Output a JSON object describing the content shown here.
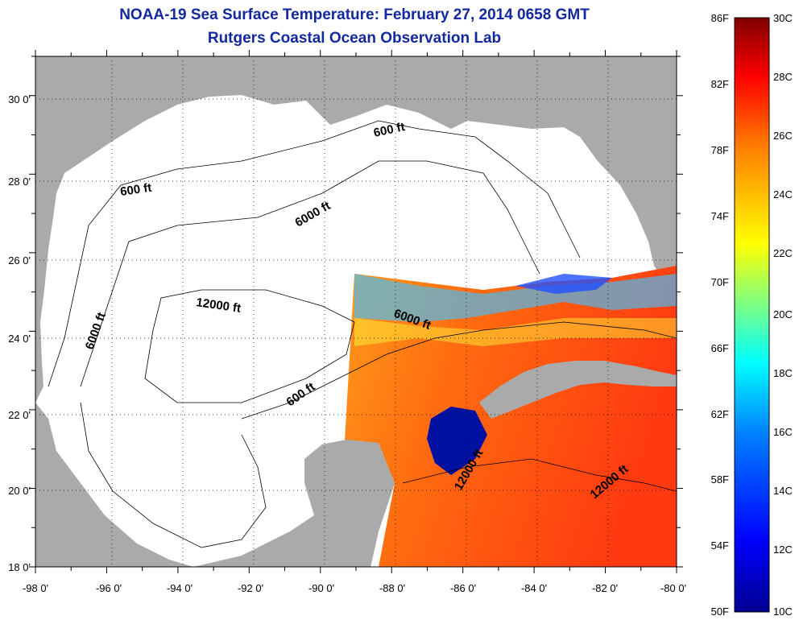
{
  "title": {
    "line1": "NOAA-19 Sea Surface Temperature:  February 27, 2014 0658 GMT",
    "line2": "Rutgers Coastal Ocean Observation Lab"
  },
  "map": {
    "lat_labels": [
      "18 0'",
      "20 0'",
      "22 0'",
      "24 0'",
      "26 0'",
      "28 0'",
      "30 0'"
    ],
    "lon_labels": [
      "-98 0'",
      "-96 0'",
      "-94 0'",
      "-92 0'",
      "-90 0'",
      "-88 0'",
      "-86 0'",
      "-84 0'",
      "-82 0'",
      "-80 0'"
    ],
    "contour_labels": [
      "600 ft",
      "600 ft",
      "600 ft",
      "6000 ft",
      "6000 ft",
      "6000 ft",
      "12000 ft",
      "12000 ft",
      "12000 ft"
    ],
    "colors": {
      "land": "#aaaaaa",
      "no_data": "#ffffff",
      "grid": "#000000"
    }
  },
  "colorbar": {
    "f_labels": [
      "86F",
      "82F",
      "78F",
      "74F",
      "70F",
      "66F",
      "62F",
      "58F",
      "54F",
      "50F"
    ],
    "c_labels": [
      "30C",
      "28C",
      "26C",
      "24C",
      "22C",
      "20C",
      "18C",
      "16C",
      "14C",
      "12C",
      "10C"
    ],
    "colors": [
      "#00008f",
      "#0000ff",
      "#0080ff",
      "#00ffff",
      "#80ff80",
      "#ffff00",
      "#ff8000",
      "#ff0000",
      "#800000"
    ]
  }
}
